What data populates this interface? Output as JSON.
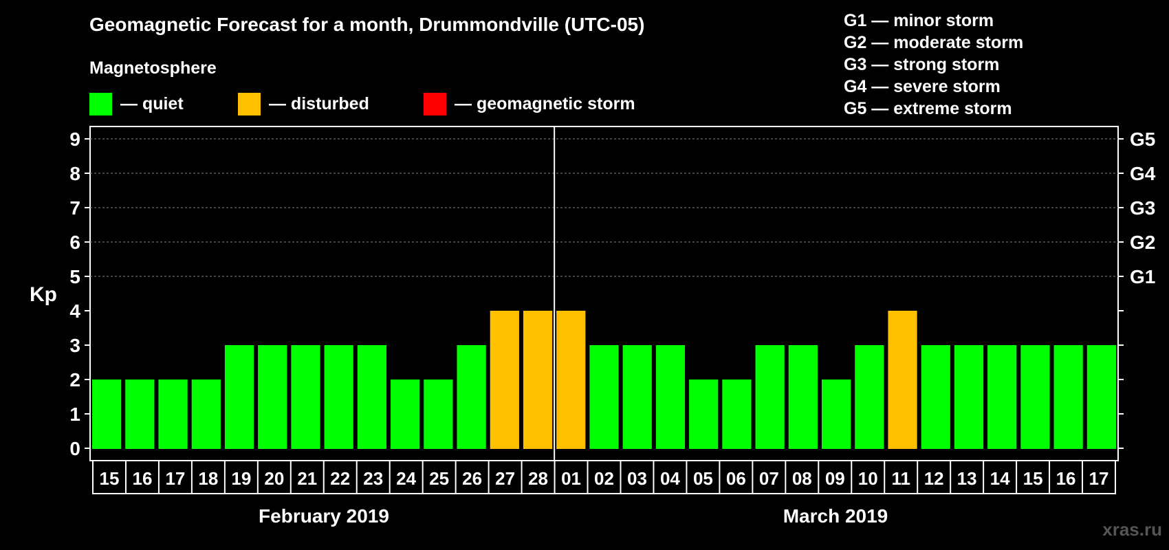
{
  "title": "Geomagnetic Forecast for a month, Drummondville (UTC-05)",
  "subtitle": "Magnetosphere",
  "legend": [
    {
      "label": "— quiet",
      "color": "#00ff00"
    },
    {
      "label": "— disturbed",
      "color": "#ffc000"
    },
    {
      "label": "— geomagnetic storm",
      "color": "#ff0000"
    }
  ],
  "g_legend": [
    "G1 — minor storm",
    "G2 — moderate storm",
    "G3 — strong storm",
    "G4 — severe storm",
    "G5 — extreme storm"
  ],
  "months": [
    "February 2019",
    "March 2019"
  ],
  "credit": "xras.ru",
  "chart_data": {
    "type": "bar",
    "ylabel": "Kp",
    "ylim": [
      0,
      9
    ],
    "yticks": [
      0,
      1,
      2,
      3,
      4,
      5,
      6,
      7,
      8,
      9
    ],
    "right_labels": [
      {
        "kp": 5,
        "label": "G1"
      },
      {
        "kp": 6,
        "label": "G2"
      },
      {
        "kp": 7,
        "label": "G3"
      },
      {
        "kp": 8,
        "label": "G4"
      },
      {
        "kp": 9,
        "label": "G5"
      }
    ],
    "categories": [
      "15",
      "16",
      "17",
      "18",
      "19",
      "20",
      "21",
      "22",
      "23",
      "24",
      "25",
      "26",
      "27",
      "28",
      "01",
      "02",
      "03",
      "04",
      "05",
      "06",
      "07",
      "08",
      "09",
      "10",
      "11",
      "12",
      "13",
      "14",
      "15",
      "16",
      "17"
    ],
    "values": [
      2,
      2,
      2,
      2,
      3,
      3,
      3,
      3,
      3,
      2,
      2,
      3,
      4,
      4,
      4,
      3,
      3,
      3,
      2,
      2,
      3,
      3,
      2,
      3,
      4,
      3,
      3,
      3,
      3,
      3,
      3
    ],
    "month_split_index": 14,
    "disturbed_threshold": 4,
    "storm_threshold": 5,
    "colors": {
      "quiet": "#00ff00",
      "disturbed": "#ffc000",
      "storm": "#ff0000"
    }
  }
}
